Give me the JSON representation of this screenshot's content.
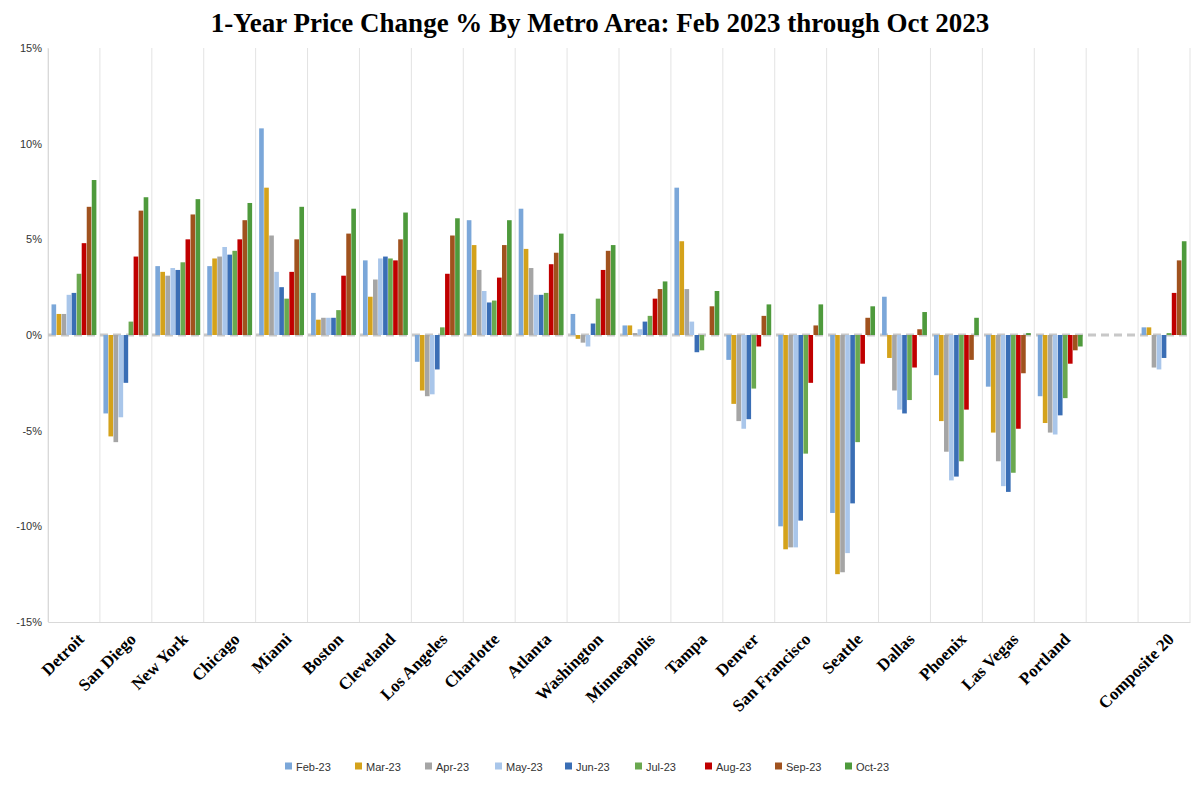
{
  "chart_data": {
    "type": "bar",
    "title": "1-Year Price Change % By Metro Area: Feb 2023 through Oct 2023",
    "categories": [
      "Detroit",
      "San Diego",
      "New York",
      "Chicago",
      "Miami",
      "Boston",
      "Cleveland",
      "Los Angeles",
      "Charlotte",
      "Atlanta",
      "Washington",
      "Minneapolis",
      "Tampa",
      "Denver",
      "San Francisco",
      "Seattle",
      "Dallas",
      "Phoenix",
      "Las Vegas",
      "Portland",
      null,
      "Composite 20"
    ],
    "series": [
      {
        "name": "Feb-23",
        "color": "#7ba7d9",
        "values": [
          1.6,
          -4.1,
          3.6,
          3.6,
          10.8,
          2.2,
          3.9,
          -1.4,
          6.0,
          6.6,
          1.1,
          0.5,
          7.7,
          -1.3,
          -10.0,
          -9.3,
          2.0,
          -2.1,
          -2.7,
          -3.2,
          null,
          0.4
        ]
      },
      {
        "name": "Mar-23",
        "color": "#d4a21b",
        "values": [
          1.1,
          -5.3,
          3.3,
          4.0,
          7.7,
          0.8,
          2.0,
          -2.9,
          4.7,
          4.5,
          -0.2,
          0.5,
          4.9,
          -3.6,
          -11.2,
          -12.5,
          -1.2,
          -4.5,
          -5.1,
          -4.6,
          null,
          0.4
        ]
      },
      {
        "name": "Apr-23",
        "color": "#a5a5a5",
        "values": [
          1.1,
          -5.6,
          3.1,
          4.1,
          5.2,
          0.9,
          2.9,
          -3.2,
          3.4,
          3.5,
          -0.4,
          0.1,
          2.4,
          -4.5,
          -11.1,
          -12.4,
          -2.9,
          -6.1,
          -6.6,
          -5.1,
          null,
          -1.7
        ]
      },
      {
        "name": "May-23",
        "color": "#a9c6ea",
        "values": [
          2.1,
          -4.3,
          3.5,
          4.6,
          3.3,
          0.9,
          4.0,
          -3.1,
          2.3,
          2.1,
          -0.6,
          0.3,
          0.7,
          -4.9,
          -11.1,
          -11.4,
          -3.9,
          -7.6,
          -7.9,
          -5.2,
          null,
          -1.8
        ]
      },
      {
        "name": "Jun-23",
        "color": "#3a6eb5",
        "values": [
          2.2,
          -2.5,
          3.4,
          4.2,
          2.5,
          0.9,
          4.1,
          -1.8,
          1.7,
          2.1,
          0.6,
          0.7,
          -0.9,
          -4.4,
          -9.7,
          -8.8,
          -4.1,
          -7.4,
          -8.2,
          -4.2,
          null,
          -1.2
        ]
      },
      {
        "name": "Jul-23",
        "color": "#6aa84f",
        "values": [
          3.2,
          0.7,
          3.8,
          4.4,
          1.9,
          1.3,
          4.0,
          0.4,
          1.8,
          2.2,
          1.9,
          1.0,
          -0.8,
          -2.8,
          -6.2,
          -5.6,
          -3.4,
          -6.6,
          -7.2,
          -3.3,
          null,
          0.1
        ]
      },
      {
        "name": "Aug-23",
        "color": "#c00000",
        "values": [
          4.8,
          4.1,
          5.0,
          5.0,
          3.3,
          3.1,
          3.9,
          3.2,
          3.0,
          3.7,
          3.4,
          1.9,
          0.0,
          -0.6,
          -2.5,
          -1.5,
          -1.7,
          -3.9,
          -4.9,
          -1.5,
          null,
          2.2
        ]
      },
      {
        "name": "Sep-23",
        "color": "#a0521e",
        "values": [
          6.7,
          6.5,
          6.3,
          6.0,
          5.0,
          5.3,
          5.0,
          5.2,
          4.7,
          4.3,
          4.4,
          2.4,
          1.5,
          1.0,
          0.5,
          0.9,
          0.3,
          -1.3,
          -2.0,
          -0.8,
          null,
          3.9
        ]
      },
      {
        "name": "Oct-23",
        "color": "#4e9a3c",
        "values": [
          8.1,
          7.2,
          7.1,
          6.9,
          6.7,
          6.6,
          6.4,
          6.1,
          6.0,
          5.3,
          4.7,
          2.8,
          2.3,
          1.6,
          1.6,
          1.5,
          1.2,
          0.9,
          0.1,
          -0.6,
          null,
          4.9
        ]
      }
    ],
    "ylim": [
      -15,
      15
    ],
    "yticks": [
      {
        "value": -15,
        "label": "-15%"
      },
      {
        "value": -10,
        "label": "-10%"
      },
      {
        "value": -5,
        "label": "-5%"
      },
      {
        "value": 0,
        "label": "0%"
      },
      {
        "value": 5,
        "label": "5%"
      },
      {
        "value": 10,
        "label": "10%"
      },
      {
        "value": 15,
        "label": "15%"
      }
    ],
    "legend": "bottom"
  }
}
